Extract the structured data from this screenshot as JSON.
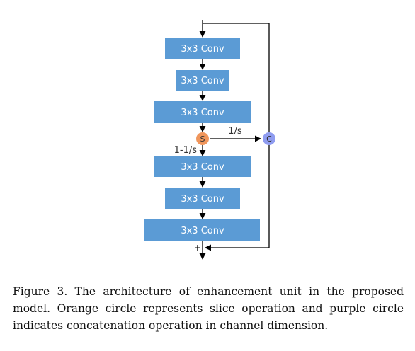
{
  "diagram": {
    "blocks": [
      "3x3 Conv",
      "3x3 Conv",
      "3x3 Conv",
      "3x3 Conv",
      "3x3 Conv",
      "3x3 Conv"
    ],
    "slice_node": {
      "letter": "S",
      "color": "#f0965c"
    },
    "concat_node": {
      "letter": "C",
      "color": "#8f9cf0"
    },
    "edge_labels": {
      "to_concat": "1/s",
      "to_next": "1-1/s"
    },
    "add_symbol": "+",
    "block_color": "#5b9bd5"
  },
  "caption": "Figure 3. The architecture of enhancement unit in the proposed model. Orange circle represents slice operation and purple circle indicates concatenation operation in channel dimension."
}
